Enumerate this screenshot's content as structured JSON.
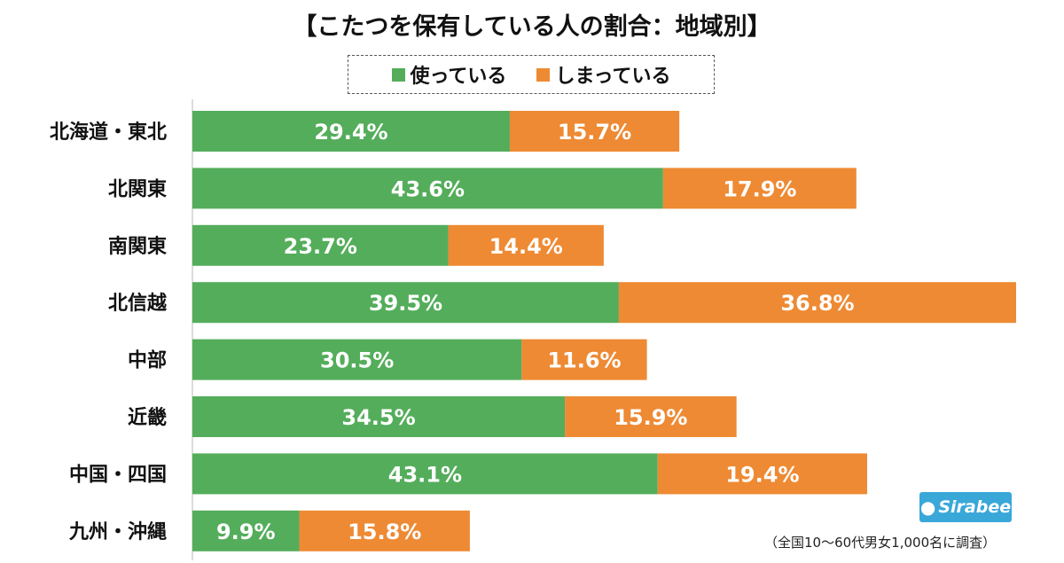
{
  "title": "【こたつを保有している人の割合：地域別】",
  "legend": [
    {
      "label": "使っている",
      "color": "#54ad5b"
    },
    {
      "label": "しまっている",
      "color": "#ee8a33"
    }
  ],
  "logo_text": "Sirabee",
  "footnote": "（全国10〜60代男女1,000名に調査）",
  "chart_data": {
    "type": "bar",
    "orientation": "horizontal",
    "stacked": true,
    "categories": [
      "北海道・東北",
      "北関東",
      "南関東",
      "北信越",
      "中部",
      "近畿",
      "中国・四国",
      "九州・沖縄"
    ],
    "series": [
      {
        "name": "使っている",
        "color": "#54ad5b",
        "values": [
          29.4,
          43.6,
          23.7,
          39.5,
          30.5,
          34.5,
          43.1,
          9.9
        ]
      },
      {
        "name": "しまっている",
        "color": "#ee8a33",
        "values": [
          15.7,
          17.9,
          14.4,
          36.8,
          11.6,
          15.9,
          19.4,
          15.8
        ]
      }
    ],
    "value_labels": [
      [
        "29.4%",
        "43.6%",
        "23.7%",
        "39.5%",
        "30.5%",
        "34.5%",
        "43.1%",
        "9.9%"
      ],
      [
        "15.7%",
        "17.9%",
        "14.4%",
        "36.8%",
        "11.6%",
        "15.9%",
        "19.4%",
        "15.8%"
      ]
    ],
    "xlim": [
      0,
      76.3
    ],
    "grid": false,
    "legend_position": "top-center"
  }
}
